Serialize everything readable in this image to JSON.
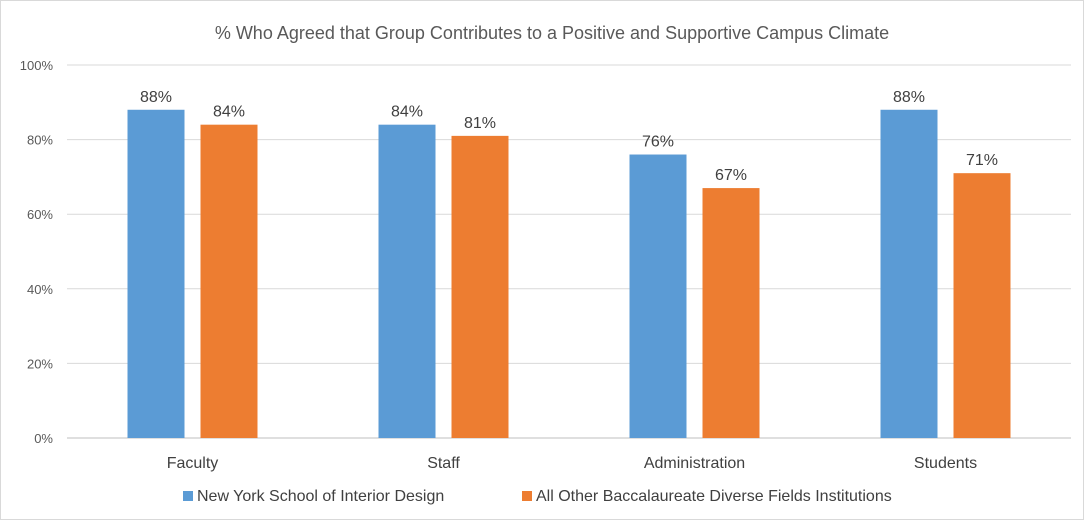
{
  "chart_data": {
    "type": "bar",
    "title": "% Who Agreed that Group Contributes to a Positive and Supportive Campus Climate",
    "xlabel": "",
    "ylabel": "",
    "categories": [
      "Faculty",
      "Staff",
      "Administration",
      "Students"
    ],
    "series": [
      {
        "name": "New York School of Interior Design",
        "values": [
          88,
          84,
          76,
          88
        ],
        "color": "#5b9bd5"
      },
      {
        "name": "All Other Baccalaureate Diverse Fields Institutions",
        "values": [
          84,
          81,
          67,
          71
        ],
        "color": "#ed7d31"
      }
    ],
    "ylim": [
      0,
      100
    ],
    "yticks": [
      0,
      20,
      40,
      60,
      80,
      100
    ],
    "ytick_labels": [
      "0%",
      "20%",
      "40%",
      "60%",
      "80%",
      "100%"
    ],
    "data_labels": [
      [
        "88%",
        "84%",
        "76%",
        "88%"
      ],
      [
        "84%",
        "81%",
        "67%",
        "71%"
      ]
    ],
    "grid": true,
    "legend_position": "bottom"
  }
}
